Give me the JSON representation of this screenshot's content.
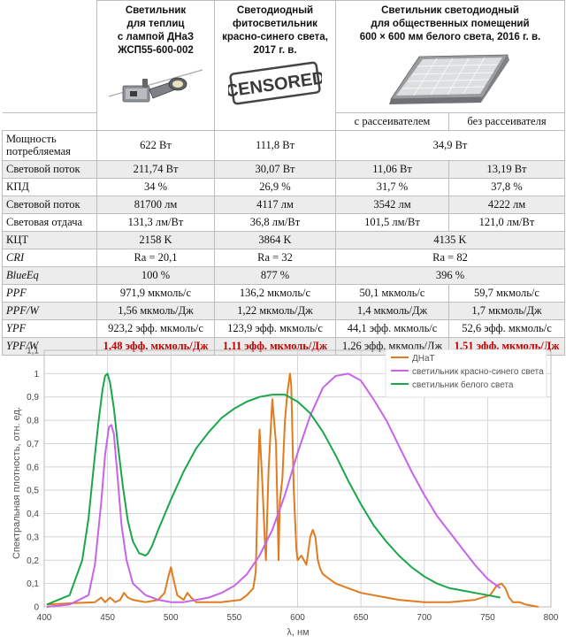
{
  "header": {
    "col1": [
      "Светильник",
      "для теплиц",
      "с лампой ДНаЗ",
      "ЖСП55-600-002"
    ],
    "col2": [
      "Светодиодный",
      "фитосветильник",
      "красно-синего света,",
      "2017 г. в."
    ],
    "col3": [
      "Светильник светодиодный",
      "для общественных помещений",
      "600 × 600 мм белого света, 2016 г. в."
    ],
    "censored_stamp": "CENSORED",
    "sub3a": "с рассеивателем",
    "sub3b": "без рассеивателя"
  },
  "rows": {
    "power": {
      "label1": "Мощность",
      "label2": "потребляемая",
      "c1": "622 Вт",
      "c2": "111,8 Вт",
      "c3": "34,9 Вт"
    },
    "flux": {
      "label": "Световой поток",
      "c1": "211,74 Вт",
      "c2": "30,07 Вт",
      "c3a": "11,06 Вт",
      "c3b": "13,19 Вт"
    },
    "eff": {
      "label": "КПД",
      "c1": "34 %",
      "c2": "26,9 %",
      "c3a": "31,7 %",
      "c3b": "37,8 %"
    },
    "lumflux": {
      "label": "Световой поток",
      "c1": "81700 лм",
      "c2": "4117 лм",
      "c3a": "3542 лм",
      "c3b": "4222 лм"
    },
    "lumeff": {
      "label": "Световая отдача",
      "c1": "131,3 лм/Вт",
      "c2": "36,8 лм/Вт",
      "c3a": "101,5 лм/Вт",
      "c3b": "121,0 лм/Вт"
    },
    "cct": {
      "label": "КЦТ",
      "c1": "2158 K",
      "c2": "3864 K",
      "c3": "4135 K"
    },
    "cri": {
      "label": "CRI",
      "c1": "Ra = 20,1",
      "c2": "Ra = 32",
      "c3": "Ra = 82"
    },
    "blueeq": {
      "label": "BlueEq",
      "c1": "100 %",
      "c2": "877 %",
      "c3": "396 %"
    },
    "ppf": {
      "label": "PPF",
      "c1": "971,9 мкмоль/с",
      "c2": "136,2 мкмоль/с",
      "c3a": "50,1 мкмоль/с",
      "c3b": "59,7 мкмоль/с"
    },
    "ppfw": {
      "label": "PPF/W",
      "c1": "1,56 мкмоль/Дж",
      "c2": "1,22 мкмоль/Дж",
      "c3a": "1,4 мкмоль/Дж",
      "c3b": "1,7 мкмоль/Дж"
    },
    "ypf": {
      "label": "YPF",
      "c1": "923,2 эфф. мкмоль/с",
      "c2": "123,9 эфф. мкмоль/с",
      "c3a": "44,1 эфф. мкмоль/с",
      "c3b": "52,6 эфф. мкмоль/с"
    },
    "ypfw": {
      "label": "YPF/W",
      "c1": "1,48 эфф. мкмоль/Дж",
      "c2": "1,11 эфф. мкмоль/Дж",
      "c3a": "1,26 эфф. мкмоль/Дж",
      "c3b": "1,51 эфф. мкмоль/Дж"
    }
  },
  "colors": {
    "highlight": "#c00000",
    "dnat": "#e07b1f",
    "redblue": "#c764e8",
    "white": "#1aa64a",
    "grid": "#d4d4d4"
  },
  "chart_data": {
    "type": "line",
    "xlabel": "λ, нм",
    "ylabel": "Спектральная плотность, отн. ед.",
    "xlim": [
      400,
      800
    ],
    "ylim": [
      0,
      1.1
    ],
    "x_ticks": [
      400,
      450,
      500,
      550,
      600,
      650,
      700,
      750,
      800
    ],
    "y_ticks": [
      "0",
      "0,1",
      "0,2",
      "0,3",
      "0,4",
      "0,5",
      "0,6",
      "0,7",
      "0,8",
      "0,9",
      "1",
      "1,1"
    ],
    "grid": true,
    "legend_position": "top-right",
    "series": [
      {
        "name": "ДНаТ",
        "color": "#e07b1f",
        "x": [
          402,
          420,
          440,
          445,
          448,
          452,
          456,
          460,
          463,
          466,
          470,
          480,
          490,
          495,
          498,
          500,
          502,
          505,
          510,
          513,
          516,
          520,
          540,
          555,
          560,
          565,
          567,
          569,
          570,
          572,
          574,
          575,
          577,
          580,
          583,
          585,
          586,
          588,
          590,
          592,
          594,
          595,
          597,
          599,
          600,
          603,
          607,
          610,
          612,
          614,
          616,
          618,
          620,
          625,
          630,
          640,
          650,
          660,
          670,
          680,
          700,
          720,
          740,
          752,
          757,
          761,
          764,
          767,
          770,
          775,
          780,
          790
        ],
        "y": [
          0.01,
          0.015,
          0.02,
          0.04,
          0.02,
          0.04,
          0.02,
          0.03,
          0.06,
          0.04,
          0.03,
          0.02,
          0.03,
          0.06,
          0.13,
          0.17,
          0.12,
          0.05,
          0.03,
          0.06,
          0.04,
          0.02,
          0.02,
          0.03,
          0.05,
          0.08,
          0.15,
          0.6,
          0.76,
          0.55,
          0.3,
          0.2,
          0.58,
          0.89,
          0.7,
          0.2,
          0.45,
          0.55,
          0.8,
          0.92,
          1.0,
          0.95,
          0.5,
          0.25,
          0.2,
          0.22,
          0.18,
          0.3,
          0.33,
          0.3,
          0.2,
          0.16,
          0.14,
          0.12,
          0.1,
          0.08,
          0.06,
          0.05,
          0.04,
          0.03,
          0.02,
          0.02,
          0.03,
          0.05,
          0.09,
          0.1,
          0.08,
          0.04,
          0.02,
          0.02,
          0.01,
          0.0
        ]
      },
      {
        "name": "светильник красно-синего света",
        "color": "#c764e8",
        "x": [
          402,
          420,
          435,
          440,
          445,
          448,
          451,
          453,
          455,
          458,
          461,
          465,
          470,
          480,
          490,
          500,
          510,
          520,
          530,
          540,
          550,
          560,
          570,
          580,
          590,
          600,
          610,
          620,
          630,
          640,
          650,
          660,
          670,
          680,
          690,
          700,
          710,
          720,
          730,
          740,
          750,
          760
        ],
        "y": [
          0.0,
          0.01,
          0.05,
          0.18,
          0.45,
          0.65,
          0.77,
          0.78,
          0.74,
          0.55,
          0.35,
          0.2,
          0.1,
          0.05,
          0.03,
          0.02,
          0.02,
          0.03,
          0.04,
          0.06,
          0.09,
          0.14,
          0.22,
          0.33,
          0.48,
          0.66,
          0.82,
          0.94,
          0.99,
          1.0,
          0.97,
          0.89,
          0.8,
          0.69,
          0.58,
          0.48,
          0.39,
          0.32,
          0.25,
          0.18,
          0.12,
          0.08
        ]
      },
      {
        "name": "светильник белого света",
        "color": "#1aa64a",
        "x": [
          402,
          420,
          430,
          435,
          440,
          443,
          446,
          448,
          450,
          452,
          455,
          458,
          462,
          466,
          470,
          475,
          480,
          482,
          485,
          490,
          500,
          510,
          520,
          530,
          540,
          550,
          560,
          570,
          580,
          590,
          600,
          610,
          620,
          630,
          640,
          650,
          660,
          670,
          680,
          690,
          700,
          710,
          720,
          730,
          740,
          750,
          760
        ],
        "y": [
          0.01,
          0.05,
          0.2,
          0.38,
          0.65,
          0.8,
          0.93,
          0.99,
          1.0,
          0.96,
          0.85,
          0.7,
          0.52,
          0.37,
          0.28,
          0.23,
          0.22,
          0.23,
          0.26,
          0.33,
          0.46,
          0.58,
          0.68,
          0.75,
          0.81,
          0.85,
          0.88,
          0.9,
          0.91,
          0.91,
          0.88,
          0.83,
          0.75,
          0.65,
          0.54,
          0.44,
          0.35,
          0.28,
          0.22,
          0.17,
          0.13,
          0.1,
          0.08,
          0.07,
          0.06,
          0.05,
          0.04
        ]
      }
    ]
  }
}
